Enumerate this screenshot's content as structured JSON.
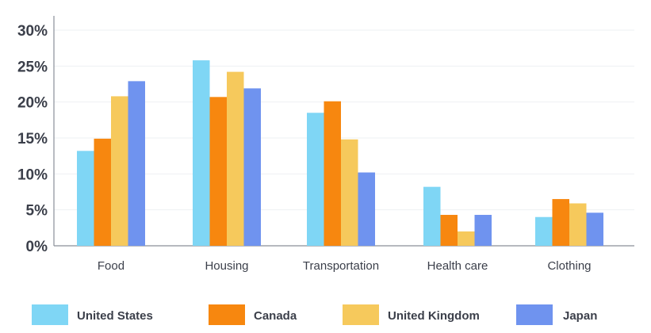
{
  "chart_data": {
    "type": "bar",
    "title": "",
    "xlabel": "",
    "ylabel": "",
    "categories": [
      "Food",
      "Housing",
      "Transportation",
      "Health care",
      "Clothing"
    ],
    "series": [
      {
        "name": "United States",
        "color": "#7fd6f5",
        "values": [
          13.2,
          25.8,
          18.5,
          8.2,
          4.0
        ]
      },
      {
        "name": "Canada",
        "color": "#f7870f",
        "values": [
          14.9,
          20.7,
          20.1,
          4.3,
          6.5
        ]
      },
      {
        "name": "United Kingdom",
        "color": "#f6c95c",
        "values": [
          20.8,
          24.2,
          14.8,
          2.0,
          5.9
        ]
      },
      {
        "name": "Japan",
        "color": "#6f93ef",
        "values": [
          22.9,
          21.9,
          10.2,
          4.3,
          4.6
        ]
      }
    ],
    "ylim": [
      0,
      30
    ],
    "yticks": [
      "0%",
      "5%",
      "10%",
      "15%",
      "20%",
      "25%",
      "30%"
    ],
    "ytick_values": [
      0,
      5,
      10,
      15,
      20,
      25,
      30
    ],
    "grid": true,
    "legend_position": "bottom"
  }
}
